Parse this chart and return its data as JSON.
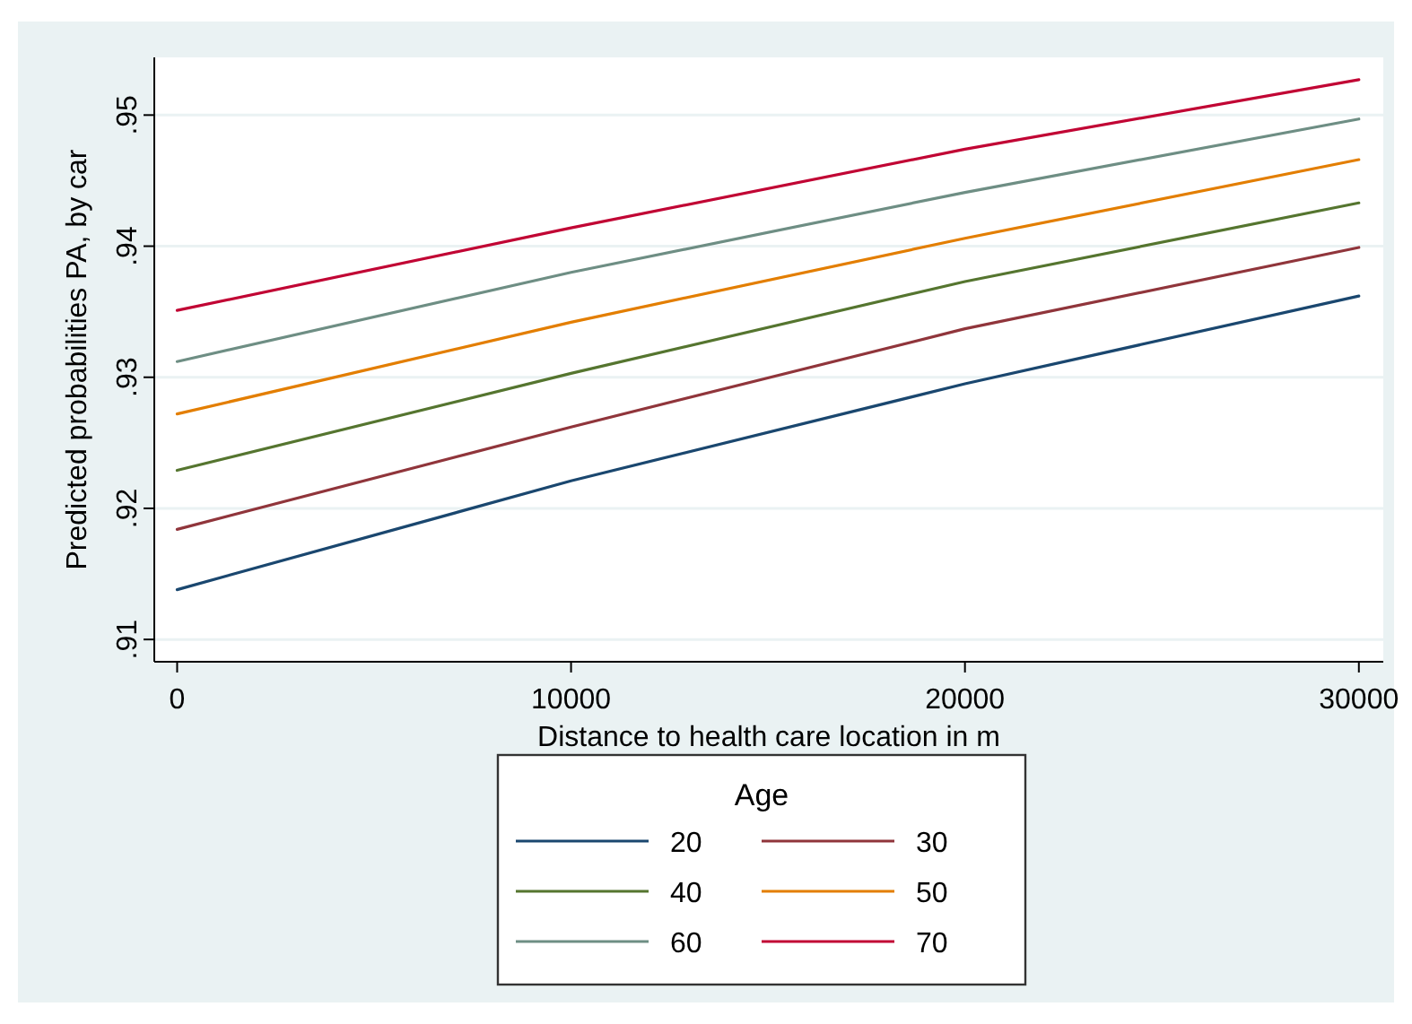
{
  "chart_data": {
    "type": "line",
    "xlabel": "Distance to health care location in m",
    "ylabel": "Predicted probabilities PA, by car",
    "legend_title": "Age",
    "x": [
      0,
      10000,
      20000,
      30000
    ],
    "xlim": [
      -580,
      30620
    ],
    "xticks": [
      0,
      10000,
      20000,
      30000
    ],
    "ylim": [
      0.9083,
      0.9544
    ],
    "yticks": [
      {
        "value": 0.91,
        "label": ".91"
      },
      {
        "value": 0.92,
        "label": ".92"
      },
      {
        "value": 0.93,
        "label": ".93"
      },
      {
        "value": 0.94,
        "label": ".94"
      },
      {
        "value": 0.95,
        "label": ".95"
      }
    ],
    "grid": "y",
    "legend": "bottom",
    "line_style": "solid",
    "marker": "none",
    "series": [
      {
        "name": "20",
        "color": "#1a476f",
        "values": [
          0.9138,
          0.9221,
          0.9295,
          0.9362
        ]
      },
      {
        "name": "30",
        "color": "#90353b",
        "values": [
          0.9184,
          0.9262,
          0.9337,
          0.9399
        ]
      },
      {
        "name": "40",
        "color": "#55752f",
        "values": [
          0.9229,
          0.9303,
          0.9373,
          0.9433
        ]
      },
      {
        "name": "50",
        "color": "#e37e00",
        "values": [
          0.9272,
          0.9342,
          0.9406,
          0.9466
        ]
      },
      {
        "name": "60",
        "color": "#6e8e84",
        "values": [
          0.9312,
          0.938,
          0.9441,
          0.9497
        ]
      },
      {
        "name": "70",
        "color": "#c10534",
        "values": [
          0.9351,
          0.9414,
          0.9474,
          0.9527
        ]
      }
    ]
  }
}
